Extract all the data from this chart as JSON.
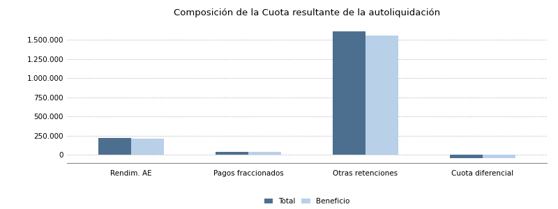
{
  "title": "Composición de la Cuota resultante de la autoliquidación",
  "categories": [
    "Rendim. AE",
    "Pagos fraccionados",
    "Otras retenciones",
    "Cuota diferencial"
  ],
  "total_values": [
    215000,
    40000,
    1610000,
    -48000
  ],
  "beneficio_values": [
    205000,
    38000,
    1560000,
    -43000
  ],
  "color_total": "#4d6f8f",
  "color_beneficio": "#b8d0e8",
  "background_color": "#ffffff",
  "grid_color": "#aaaaaa",
  "ylim_min": -110000,
  "ylim_max": 1750000,
  "ytick_values": [
    0,
    250000,
    500000,
    750000,
    1000000,
    1250000,
    1500000
  ],
  "bar_width": 0.28,
  "legend_labels": [
    "Total",
    "Beneficio"
  ],
  "title_fontsize": 9.5,
  "tick_fontsize": 7.5,
  "legend_fontsize": 7.5
}
